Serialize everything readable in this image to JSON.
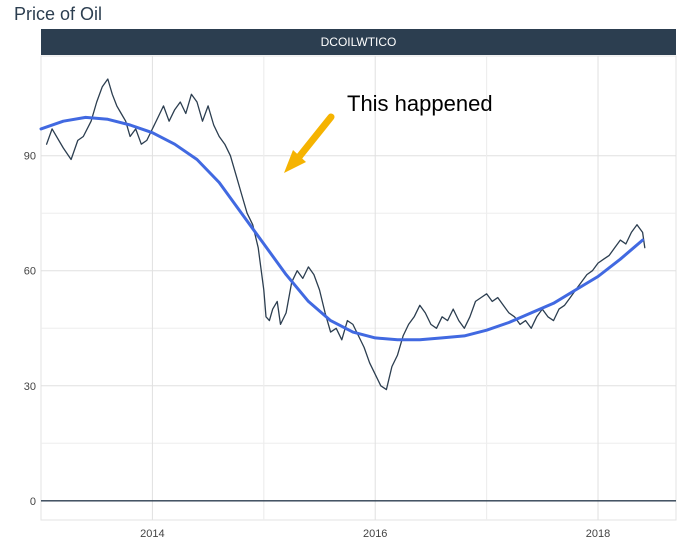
{
  "page_title": "Price of Oil",
  "chart_data": {
    "type": "line",
    "facet_label": "DCOILWTICO",
    "x_ticks": [
      "2014",
      "2016",
      "2018"
    ],
    "y_ticks": [
      0,
      30,
      60,
      90
    ],
    "xlim": [
      2013.0,
      2018.7
    ],
    "ylim": [
      -5,
      116
    ],
    "annotation": "This happened",
    "colors": {
      "price": "#2c3e50",
      "trend": "#4169e1",
      "arrow": "#f5b301",
      "strip": "#2c3e50"
    },
    "series": [
      {
        "values_x": [
          2013.05,
          2013.1,
          2013.2,
          2013.27,
          2013.33,
          2013.38,
          2013.45,
          2013.5,
          2013.55,
          2013.6,
          2013.64,
          2013.68,
          2013.72,
          2013.76,
          2013.8,
          2013.85,
          2013.9,
          2013.95,
          2014.0,
          2014.05,
          2014.1,
          2014.15,
          2014.2,
          2014.25,
          2014.3,
          2014.35,
          2014.4,
          2014.45,
          2014.5,
          2014.55,
          2014.6,
          2014.65,
          2014.7,
          2014.75,
          2014.8,
          2014.85,
          2014.9,
          2014.95,
          2015.0,
          2015.02,
          2015.05,
          2015.08,
          2015.12,
          2015.15,
          2015.2,
          2015.25,
          2015.3,
          2015.35,
          2015.4,
          2015.45,
          2015.5,
          2015.55,
          2015.6,
          2015.65,
          2015.7,
          2015.75,
          2015.8,
          2015.85,
          2015.9,
          2015.95,
          2016.0,
          2016.05,
          2016.1,
          2016.15,
          2016.2,
          2016.25,
          2016.3,
          2016.35,
          2016.4,
          2016.45,
          2016.5,
          2016.55,
          2016.6,
          2016.65,
          2016.7,
          2016.75,
          2016.8,
          2016.85,
          2016.9,
          2016.95,
          2017.0,
          2017.05,
          2017.1,
          2017.15,
          2017.2,
          2017.25,
          2017.3,
          2017.35,
          2017.4,
          2017.45,
          2017.5,
          2017.55,
          2017.6,
          2017.65,
          2017.7,
          2017.75,
          2017.8,
          2017.85,
          2017.9,
          2017.95,
          2018.0,
          2018.05,
          2018.1,
          2018.15,
          2018.2,
          2018.25,
          2018.3,
          2018.35,
          2018.4,
          2018.42
        ],
        "values_y": [
          93,
          97,
          92,
          89,
          94,
          95,
          99,
          104,
          108,
          110,
          106,
          103,
          101,
          99,
          95,
          97,
          93,
          94,
          97,
          100,
          103,
          99,
          102,
          104,
          101,
          106,
          104,
          99,
          103,
          98,
          95,
          93,
          90,
          85,
          80,
          75,
          72,
          66,
          55,
          48,
          47,
          50,
          52,
          46,
          49,
          57,
          60,
          58,
          61,
          59,
          55,
          49,
          44,
          45,
          42,
          47,
          46,
          43,
          40,
          36,
          33,
          30,
          29,
          35,
          38,
          43,
          46,
          48,
          51,
          49,
          46,
          45,
          48,
          47,
          50,
          47,
          45,
          48,
          52,
          53,
          54,
          52,
          53,
          51,
          49,
          48,
          46,
          47,
          45,
          48,
          50,
          48,
          47,
          50,
          51,
          53,
          55,
          57,
          59,
          60,
          62,
          63,
          64,
          66,
          68,
          67,
          70,
          72,
          70,
          66
        ]
      },
      {
        "values_x": [
          2013.0,
          2013.2,
          2013.4,
          2013.6,
          2013.8,
          2014.0,
          2014.2,
          2014.4,
          2014.6,
          2014.8,
          2015.0,
          2015.2,
          2015.4,
          2015.6,
          2015.8,
          2016.0,
          2016.2,
          2016.4,
          2016.6,
          2016.8,
          2017.0,
          2017.2,
          2017.4,
          2017.6,
          2017.8,
          2018.0,
          2018.2,
          2018.4
        ],
        "values_y": [
          97,
          99,
          100,
          99.5,
          98,
          96,
          93,
          89,
          83,
          75,
          67,
          59,
          52,
          47,
          44,
          42.5,
          42,
          42,
          42.5,
          43,
          44.5,
          46.5,
          49,
          51.5,
          55,
          58.5,
          63,
          68
        ]
      }
    ]
  }
}
